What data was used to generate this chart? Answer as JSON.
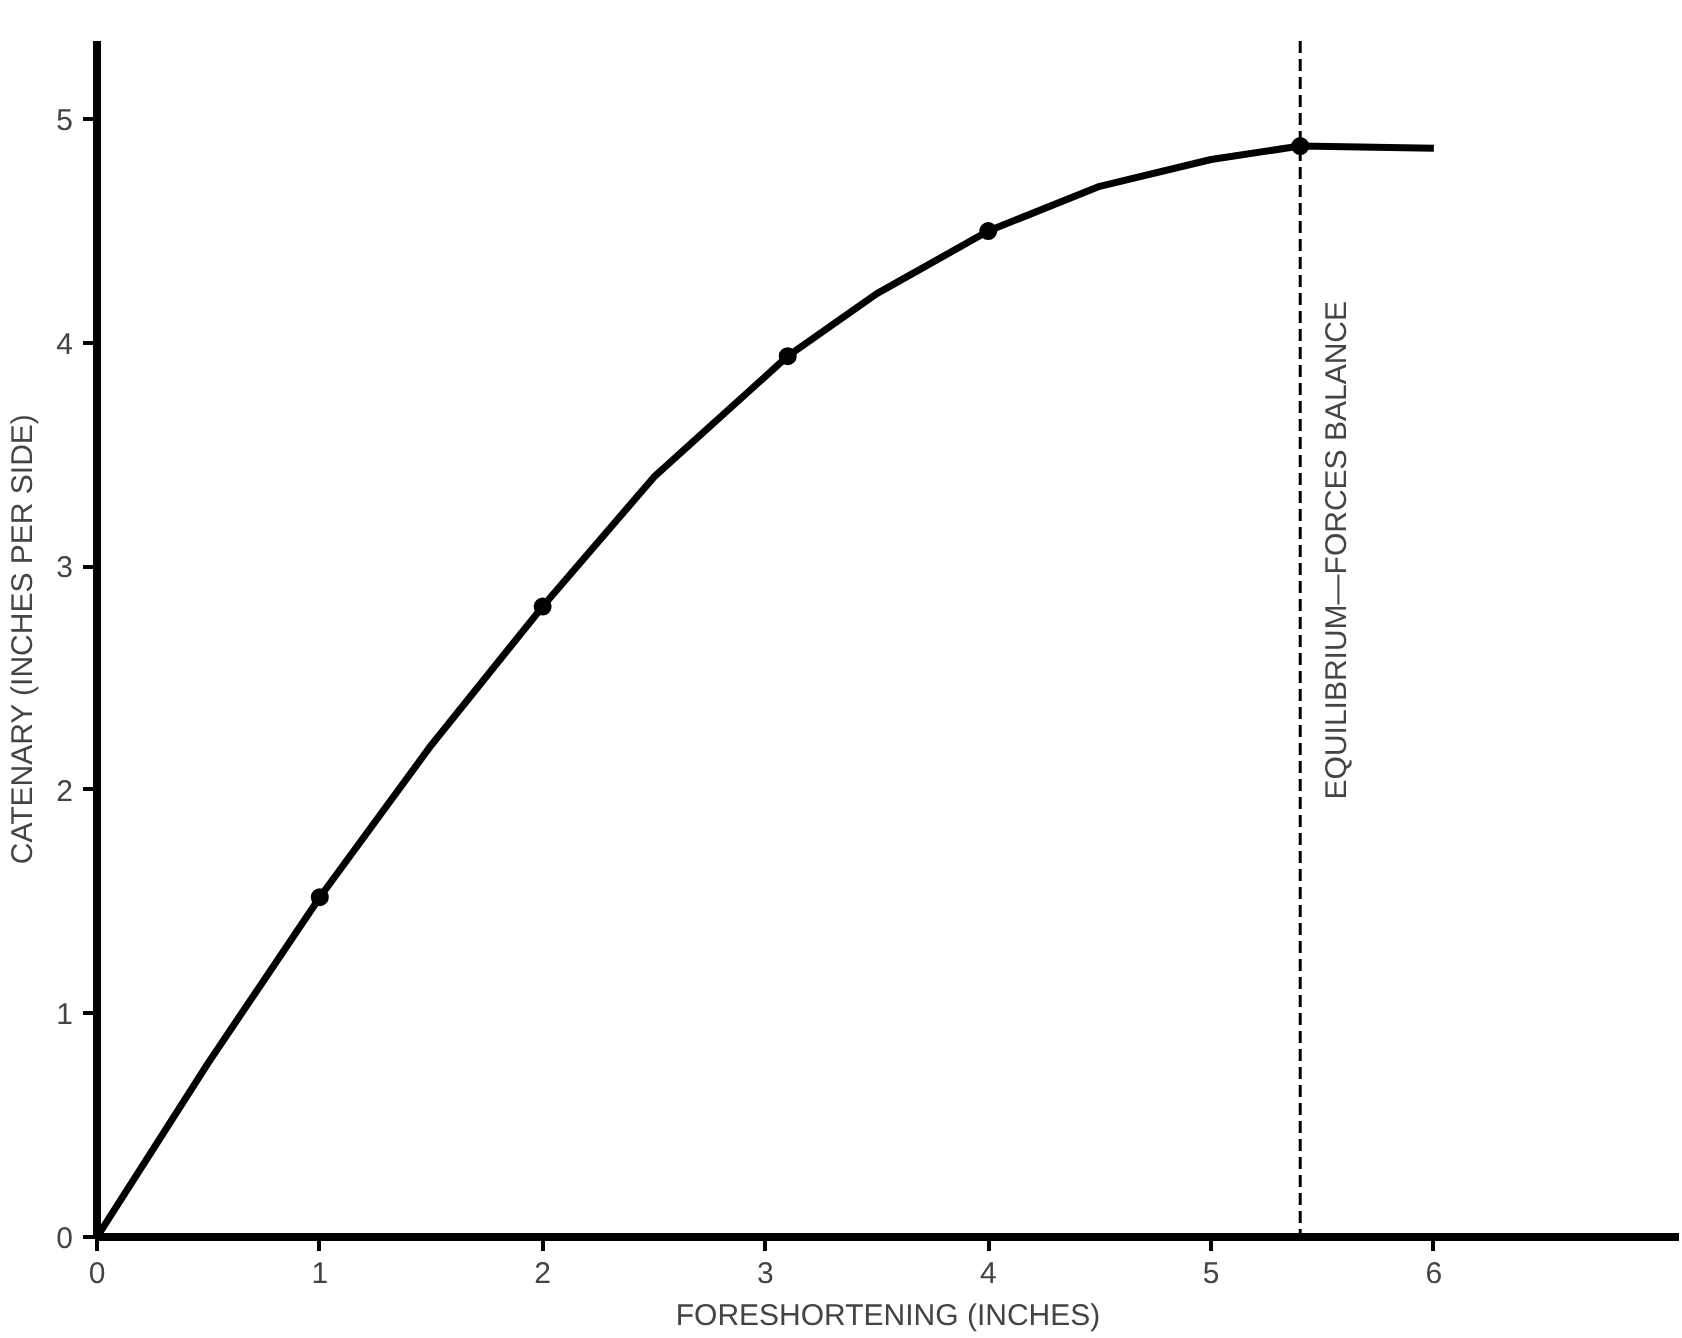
{
  "chart_data": {
    "type": "line",
    "xlabel": "FORESHORTENING (INCHES)",
    "ylabel": "CATENARY (INCHES PER SIDE)",
    "series": [
      {
        "color": "#000000",
        "marker": "none",
        "x": [
          0,
          0.5,
          1,
          1.5,
          2,
          2.5,
          3.1,
          3.5,
          4,
          4.5,
          5,
          5.4,
          6
        ],
        "values": [
          0,
          0.78,
          1.52,
          2.2,
          2.82,
          3.4,
          3.94,
          4.22,
          4.5,
          4.7,
          4.82,
          4.88,
          4.87
        ]
      },
      {
        "type": "scatter",
        "color": "#000000",
        "marker": "circle",
        "x": [
          1,
          2,
          3.1,
          4,
          5.4
        ],
        "values": [
          1.52,
          2.82,
          3.94,
          4.5,
          4.88
        ]
      }
    ],
    "xlim": [
      0,
      7.1
    ],
    "ylim": [
      0,
      5.35
    ],
    "xticks": [
      0,
      1,
      2,
      3,
      4,
      5,
      6
    ],
    "yticks": [
      0,
      1,
      2,
      3,
      4,
      5
    ],
    "grid": false,
    "ref_lines": [
      {
        "axis": "x",
        "value": 5.4,
        "label": "EQUILIBRIUM—FORCES BALANCE",
        "color": "#000000",
        "line_style": "dashed"
      }
    ]
  }
}
